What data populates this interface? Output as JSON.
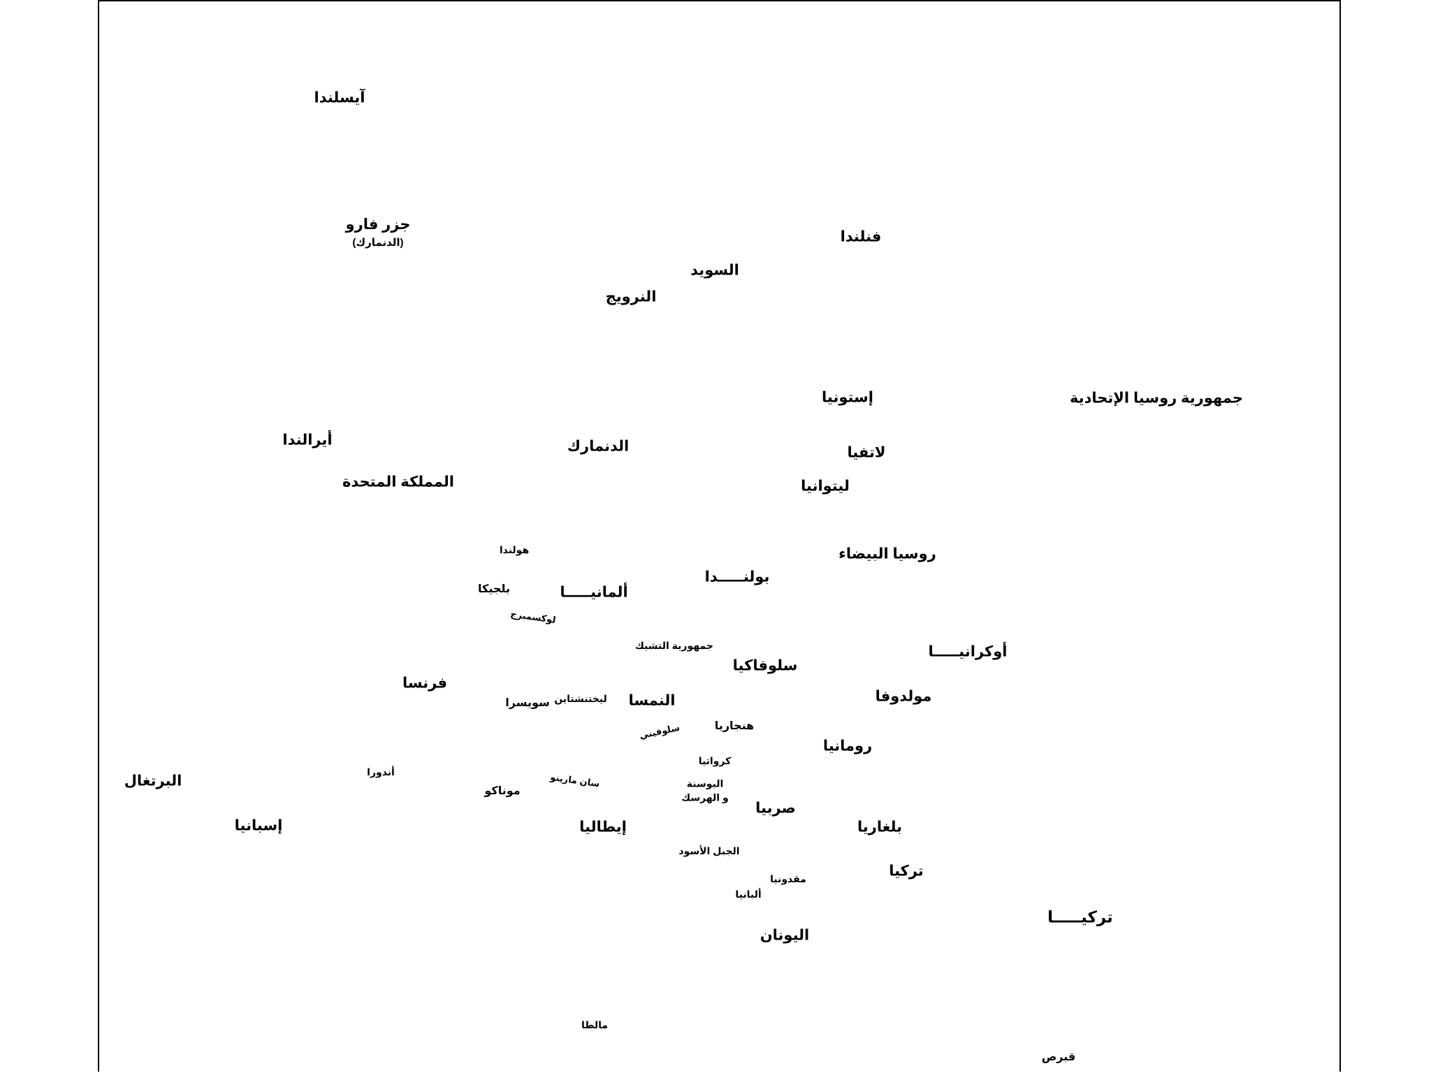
{
  "map": {
    "countries": {
      "iceland": "آيسلندا",
      "faroe": "جزر فارو",
      "faroe_note": "(الدنمارك)",
      "finland": "فنلندا",
      "sweden": "السويد",
      "norway": "النرويج",
      "estonia": "إستونيا",
      "russia": "جمهورية روسيا الإتحادية",
      "ireland": "أيرالندا",
      "denmark": "الدنمارك",
      "latvia": "لاتفيا",
      "uk": "المملكة المتحدة",
      "lithuania": "ليتوانيا",
      "netherlands": "هولندا",
      "belarus": "روسيا البيضاء",
      "belgium": "بلجيكا",
      "germany": "ألمانيـــــا",
      "poland": "بولنـــــدا",
      "luxembourg": "لوكسمبرج",
      "czech": "جمهورية التشيك",
      "ukraine": "أوكرانيـــــا",
      "slovakia": "سلوفاكيا",
      "france": "فرنسا",
      "liechtenstein": "ليختنشتاين",
      "switzerland": "سويسرا",
      "austria": "النمسا",
      "moldova": "مولدوفا",
      "slovenia": "سلوفيني",
      "hungary": "هنجاريا",
      "romania": "رومانيا",
      "croatia": "كرواتيا",
      "portugal": "البرتغال",
      "andorra": "أندورا",
      "san_marino": "سان مارينو",
      "bosnia_line1": "البوسنة",
      "bosnia_line2": "و الهرسك",
      "monaco": "موناكو",
      "serbia": "صربيا",
      "spain": "إسبانيا",
      "italy": "إيطاليا",
      "bulgaria": "بلغاريا",
      "montenegro": "الجبل الأسود",
      "turkey_small": "تركيا",
      "macedonia": "مقدونيا",
      "albania": "ألبانيا",
      "turkey_big": "تركيـــــا",
      "greece": "اليونان",
      "malta": "مالطا",
      "cyprus": "قبرص"
    }
  }
}
